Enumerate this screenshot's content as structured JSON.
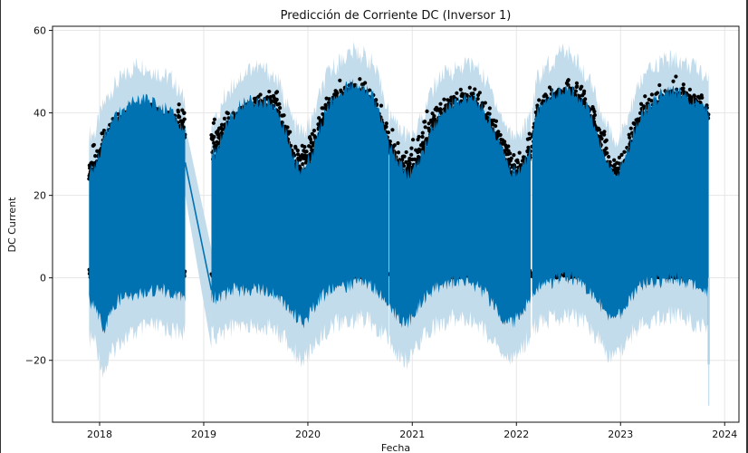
{
  "chart_data": {
    "type": "area",
    "title": "Predicción de Corriente DC (Inversor 1)",
    "xlabel": "Fecha",
    "ylabel": "DC Current",
    "xlim": [
      "2017-07-20",
      "2024-02-20"
    ],
    "ylim": [
      -35,
      61
    ],
    "x_ticks": [
      "2018",
      "2019",
      "2020",
      "2021",
      "2022",
      "2023",
      "2024"
    ],
    "y_ticks": [
      -20,
      0,
      20,
      40,
      60
    ],
    "grid": true,
    "colors": {
      "forecast_line": "#0072b2",
      "uncertainty_band": "#c3dcec",
      "observations": "#000000",
      "grid": "#e6e6e6"
    },
    "segments": [
      {
        "start": "2017-11-25",
        "end": "2018-10-28"
      },
      {
        "start": "2019-01-28",
        "end": "2020-10-10"
      },
      {
        "start": "2020-10-12",
        "end": "2022-02-20"
      },
      {
        "start": "2022-02-25",
        "end": "2023-11-06"
      }
    ],
    "gap_line": {
      "x": [
        "2018-10-28",
        "2019-01-28"
      ],
      "y": [
        28,
        -3
      ]
    },
    "tail_point": {
      "x": "2023-11-06",
      "y": -21,
      "lower": -31
    },
    "series": [
      {
        "x": [
          "2017-12",
          "2018-01",
          "2018-02",
          "2018-03",
          "2018-04",
          "2018-05",
          "2018-06",
          "2018-07",
          "2018-08",
          "2018-09",
          "2018-10",
          "2019-02",
          "2019-03",
          "2019-04",
          "2019-05",
          "2019-06",
          "2019-07",
          "2019-08",
          "2019-09",
          "2019-10",
          "2019-11",
          "2019-12",
          "2020-01",
          "2020-02",
          "2020-03",
          "2020-04",
          "2020-05",
          "2020-06",
          "2020-07",
          "2020-08",
          "2020-09",
          "2020-10",
          "2020-11",
          "2020-12",
          "2021-01",
          "2021-02",
          "2021-03",
          "2021-04",
          "2021-05",
          "2021-06",
          "2021-07",
          "2021-08",
          "2021-09",
          "2021-10",
          "2021-11",
          "2021-12",
          "2022-01",
          "2022-02",
          "2022-03",
          "2022-04",
          "2022-05",
          "2022-06",
          "2022-07",
          "2022-08",
          "2022-09",
          "2022-10",
          "2022-11",
          "2022-12",
          "2023-01",
          "2023-02",
          "2023-03",
          "2023-04",
          "2023-05",
          "2023-06",
          "2023-07",
          "2023-08",
          "2023-09",
          "2023-10",
          "2023-11"
        ],
        "yhat_upper": [
          26,
          34,
          38,
          40,
          42,
          43,
          43,
          42,
          41,
          40,
          36,
          30,
          37,
          40,
          42,
          43,
          43,
          42,
          40,
          35,
          28,
          26,
          30,
          37,
          42,
          44,
          46,
          47,
          46,
          44,
          38,
          32,
          28,
          25,
          27,
          32,
          37,
          40,
          42,
          43,
          44,
          43,
          40,
          36,
          30,
          26,
          26,
          30,
          40,
          43,
          45,
          46,
          45,
          43,
          40,
          34,
          28,
          25,
          28,
          35,
          40,
          42,
          44,
          45,
          45,
          44,
          43,
          42,
          40
        ],
        "yhat_lower": [
          -6,
          -13,
          -7,
          -5,
          -4,
          -4,
          -3,
          -3,
          -3,
          -4,
          -4,
          -5,
          -4,
          -3,
          -3,
          -3,
          -3,
          -3,
          -4,
          -6,
          -9,
          -11,
          -8,
          -5,
          -3,
          -2,
          -2,
          -1,
          -1,
          -2,
          -4,
          -7,
          -10,
          -11,
          -8,
          -5,
          -3,
          -2,
          -1,
          -1,
          -1,
          -2,
          -4,
          -7,
          -10,
          -11,
          -9,
          -5,
          -2,
          -1,
          -1,
          0,
          0,
          -1,
          -3,
          -6,
          -9,
          -10,
          -7,
          -4,
          -2,
          -1,
          -1,
          0,
          0,
          -1,
          -2,
          -3,
          -4
        ],
        "band_upper": [
          35,
          42,
          46,
          48,
          50,
          52,
          51,
          50,
          49,
          48,
          44,
          38,
          44,
          47,
          49,
          51,
          51,
          50,
          48,
          43,
          37,
          35,
          38,
          45,
          50,
          52,
          54,
          55,
          54,
          52,
          46,
          40,
          36,
          34,
          36,
          41,
          46,
          49,
          50,
          51,
          52,
          51,
          48,
          44,
          38,
          35,
          35,
          38,
          48,
          51,
          53,
          55,
          54,
          51,
          48,
          42,
          36,
          33,
          36,
          43,
          48,
          50,
          52,
          53,
          53,
          52,
          51,
          50,
          48
        ],
        "band_lower": [
          -15,
          -23,
          -18,
          -15,
          -14,
          -13,
          -12,
          -12,
          -12,
          -13,
          -13,
          -14,
          -13,
          -12,
          -12,
          -12,
          -12,
          -12,
          -13,
          -15,
          -18,
          -20,
          -17,
          -14,
          -12,
          -11,
          -11,
          -10,
          -10,
          -11,
          -13,
          -16,
          -19,
          -20,
          -17,
          -14,
          -12,
          -11,
          -10,
          -10,
          -10,
          -11,
          -13,
          -16,
          -19,
          -20,
          -18,
          -14,
          -11,
          -10,
          -10,
          -9,
          -9,
          -10,
          -12,
          -15,
          -18,
          -19,
          -16,
          -13,
          -11,
          -10,
          -10,
          -9,
          -9,
          -10,
          -11,
          -12,
          -13
        ],
        "obs_upper": [
          33,
          37,
          40,
          41,
          42,
          43,
          43,
          42,
          41,
          40,
          46,
          40,
          41,
          42,
          43,
          45,
          47,
          48,
          47,
          40,
          36,
          33,
          36,
          43,
          46,
          48,
          49,
          49,
          48,
          46,
          42,
          38,
          33,
          32,
          35,
          40,
          43,
          45,
          46,
          47,
          47,
          46,
          44,
          40,
          36,
          32,
          31,
          35,
          44,
          46,
          48,
          49,
          49,
          47,
          45,
          40,
          35,
          31,
          33,
          39,
          44,
          46,
          47,
          48,
          49,
          48,
          47,
          46,
          44
        ]
      }
    ]
  }
}
